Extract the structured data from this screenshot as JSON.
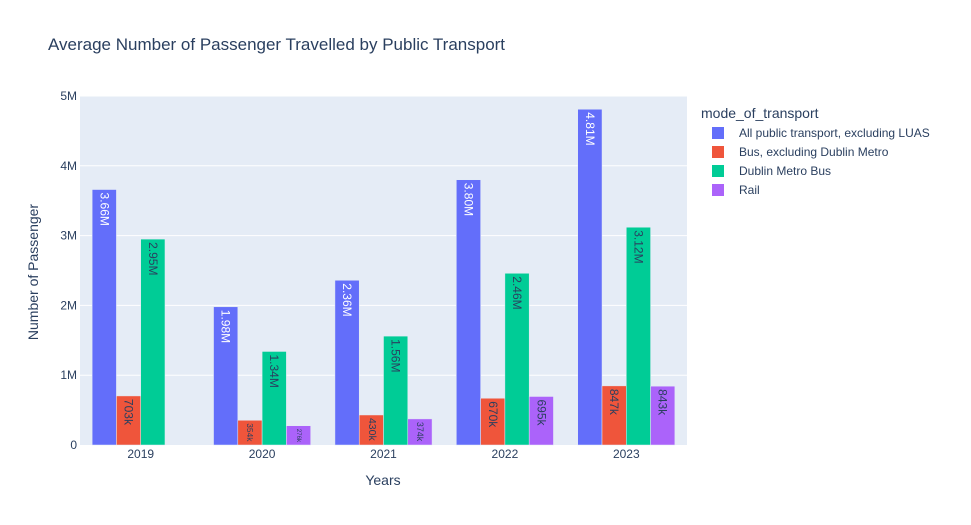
{
  "chart_data": {
    "type": "bar",
    "title": "Average Number of Passenger Travelled by Public Transport",
    "xlabel": "Years",
    "ylabel": "Number of Passenger",
    "categories": [
      "2019",
      "2020",
      "2021",
      "2022",
      "2023"
    ],
    "ylim": [
      0,
      5000000
    ],
    "yticks": [
      {
        "value": 0,
        "label": "0"
      },
      {
        "value": 1000000,
        "label": "1M"
      },
      {
        "value": 2000000,
        "label": "2M"
      },
      {
        "value": 3000000,
        "label": "3M"
      },
      {
        "value": 4000000,
        "label": "4M"
      },
      {
        "value": 5000000,
        "label": "5M"
      }
    ],
    "legend_title": "mode_of_transport",
    "legend_position": "right",
    "grid": true,
    "series": [
      {
        "name": "All public transport, excluding LUAS",
        "color": "#636efa",
        "label_color": "#ffffff",
        "values": [
          3660000,
          1980000,
          2360000,
          3800000,
          4810000
        ],
        "labels": [
          "3.66M",
          "1.98M",
          "2.36M",
          "3.80M",
          "4.81M"
        ]
      },
      {
        "name": "Bus, excluding Dublin Metro",
        "color": "#ef553b",
        "label_color": "#2a3f5f",
        "values": [
          703000,
          354000,
          430000,
          670000,
          847000
        ],
        "labels": [
          "703k",
          "354k",
          "430k",
          "670k",
          "847k"
        ]
      },
      {
        "name": "Dublin Metro Bus",
        "color": "#00cc96",
        "label_color": "#2a3f5f",
        "values": [
          2950000,
          1340000,
          1560000,
          2460000,
          3120000
        ],
        "labels": [
          "2.95M",
          "1.34M",
          "1.56M",
          "2.46M",
          "3.12M"
        ]
      },
      {
        "name": "Rail",
        "color": "#ab63fa",
        "label_color": "#2a3f5f",
        "values": [
          0,
          276000,
          374000,
          695000,
          843000
        ],
        "labels": [
          "",
          "276k",
          "374k",
          "695k",
          "843k"
        ]
      }
    ]
  }
}
